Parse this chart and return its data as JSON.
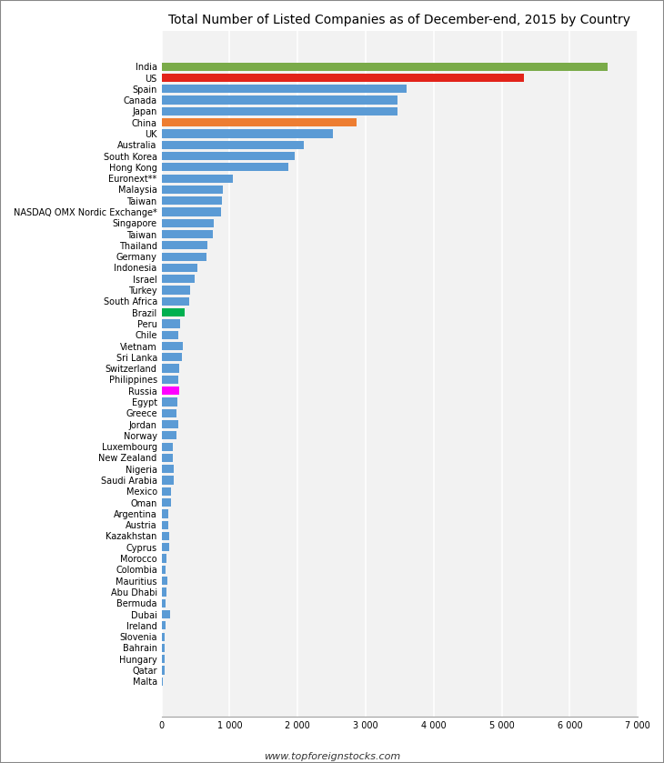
{
  "title": "Total Number of Listed Companies as of December-end, 2015 by Country",
  "footer": "www.topforeignstocks.com",
  "xlim": [
    0,
    7000
  ],
  "xticks": [
    0,
    1000,
    2000,
    3000,
    4000,
    5000,
    6000,
    7000
  ],
  "xticklabels": [
    "0",
    "1 000",
    "2 000",
    "3 000",
    "4 000",
    "5 000",
    "6 000",
    "7 000"
  ],
  "categories": [
    "India",
    "US",
    "Spain",
    "Canada",
    "Japan",
    "China",
    "UK",
    "Australia",
    "South Korea",
    "Hong Kong",
    "Euronext**",
    "Malaysia",
    "Taiwan",
    "NASDAQ OMX Nordic Exchange*",
    "Singapore",
    "Taiwan",
    "Thailand",
    "Germany",
    "Indonesia",
    "Israel",
    "Turkey",
    "South Africa",
    "Brazil",
    "Peru",
    "Chile",
    "Vietnam",
    "Sri Lanka",
    "Switzerland",
    "Philippines",
    "Russia",
    "Egypt",
    "Greece",
    "Jordan",
    "Norway",
    "Luxembourg",
    "New Zealand",
    "Nigeria",
    "Saudi Arabia",
    "Mexico",
    "Oman",
    "Argentina",
    "Austria",
    "Kazakhstan",
    "Cyprus",
    "Morocco",
    "Colombia",
    "Mauritius",
    "Abu Dhabi",
    "Bermuda",
    "Dubai",
    "Ireland",
    "Slovenia",
    "Bahrain",
    "Hungary",
    "Qatar",
    "Malta"
  ],
  "values": [
    6561,
    5326,
    3607,
    3474,
    3470,
    2869,
    2514,
    2096,
    1955,
    1866,
    1050,
    905,
    890,
    870,
    770,
    752,
    680,
    665,
    521,
    480,
    420,
    400,
    340,
    275,
    250,
    308,
    295,
    265,
    250,
    254,
    235,
    225,
    245,
    215,
    170,
    165,
    175,
    175,
    140,
    145,
    100,
    100,
    115,
    110,
    75,
    65,
    80,
    70,
    60,
    130,
    55,
    50,
    45,
    40,
    42,
    20
  ],
  "colors": [
    "#7aab49",
    "#e2231a",
    "#5b9bd5",
    "#5b9bd5",
    "#5b9bd5",
    "#ed7d31",
    "#5b9bd5",
    "#5b9bd5",
    "#5b9bd5",
    "#5b9bd5",
    "#5b9bd5",
    "#5b9bd5",
    "#5b9bd5",
    "#5b9bd5",
    "#5b9bd5",
    "#5b9bd5",
    "#5b9bd5",
    "#5b9bd5",
    "#5b9bd5",
    "#5b9bd5",
    "#5b9bd5",
    "#5b9bd5",
    "#00b050",
    "#5b9bd5",
    "#5b9bd5",
    "#5b9bd5",
    "#5b9bd5",
    "#5b9bd5",
    "#5b9bd5",
    "#ff00ff",
    "#5b9bd5",
    "#5b9bd5",
    "#5b9bd5",
    "#5b9bd5",
    "#5b9bd5",
    "#5b9bd5",
    "#5b9bd5",
    "#5b9bd5",
    "#5b9bd5",
    "#5b9bd5",
    "#5b9bd5",
    "#5b9bd5",
    "#5b9bd5",
    "#5b9bd5",
    "#5b9bd5",
    "#5b9bd5",
    "#5b9bd5",
    "#5b9bd5",
    "#5b9bd5",
    "#5b9bd5",
    "#5b9bd5",
    "#5b9bd5",
    "#5b9bd5",
    "#5b9bd5",
    "#5b9bd5",
    "#5b9bd5"
  ],
  "bg_color": "#ffffff",
  "plot_bg_color": "#f2f2f2",
  "grid_color": "#ffffff",
  "title_fontsize": 10,
  "tick_fontsize": 7,
  "bar_height": 0.75,
  "border_color": "#a0a0a0"
}
